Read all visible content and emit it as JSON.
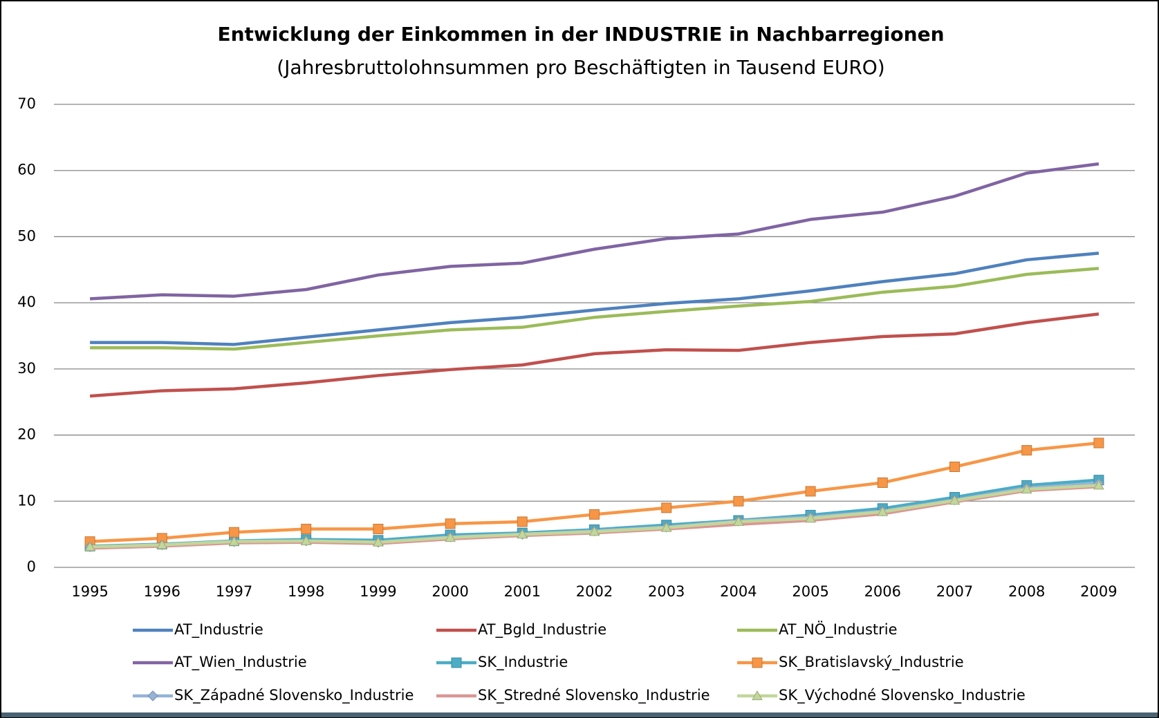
{
  "chart_data": {
    "type": "line",
    "title": "Entwicklung der Einkommen in der INDUSTRIE in Nachbarregionen",
    "subtitle": "(Jahresbruttolohnsummen pro Beschäftigten in Tausend EURO)",
    "categories": [
      "1995",
      "1996",
      "1997",
      "1998",
      "1999",
      "2000",
      "2001",
      "2002",
      "2003",
      "2004",
      "2005",
      "2006",
      "2007",
      "2008",
      "2009"
    ],
    "ylim": [
      0,
      70
    ],
    "yticks": [
      0,
      10,
      20,
      30,
      40,
      50,
      60,
      70
    ],
    "grid": true,
    "legend": "bottom",
    "series": [
      {
        "name": "AT_Industrie",
        "color": "#4f81bd",
        "marker": "none",
        "values": [
          34,
          34,
          33.7,
          34.8,
          35.9,
          37,
          37.8,
          38.9,
          39.9,
          40.6,
          41.8,
          43.2,
          44.4,
          46.5,
          47.5
        ]
      },
      {
        "name": "AT_Bgld_Industrie",
        "color": "#c0504d",
        "marker": "none",
        "values": [
          25.9,
          26.7,
          27,
          27.9,
          29,
          29.9,
          30.6,
          32.3,
          32.9,
          32.8,
          34,
          34.9,
          35.3,
          37,
          38.3
        ]
      },
      {
        "name": "AT_NÖ_Industrie",
        "color": "#9bbb59",
        "marker": "none",
        "values": [
          33.2,
          33.2,
          33,
          34,
          35,
          35.9,
          36.3,
          37.8,
          38.7,
          39.5,
          40.2,
          41.6,
          42.5,
          44.3,
          45.2
        ]
      },
      {
        "name": "AT_Wien_Industrie",
        "color": "#8064a2",
        "marker": "none",
        "values": [
          40.6,
          41.2,
          41,
          42,
          44.2,
          45.5,
          46,
          48.1,
          49.7,
          50.4,
          52.6,
          53.7,
          56.1,
          59.6,
          61
        ]
      },
      {
        "name": "SK_Industrie",
        "color": "#4bacc6",
        "marker": "square",
        "values": [
          3.2,
          3.5,
          4,
          4.2,
          4.1,
          4.9,
          5.2,
          5.7,
          6.4,
          7.1,
          7.9,
          8.9,
          10.6,
          12.4,
          13.2
        ]
      },
      {
        "name": "SK_Bratislavský_Industrie",
        "color": "#f79646",
        "marker": "square",
        "values": [
          3.9,
          4.4,
          5.3,
          5.8,
          5.8,
          6.6,
          6.9,
          8,
          9,
          10,
          11.5,
          12.8,
          15.2,
          17.7,
          18.8
        ]
      },
      {
        "name": "SK_Západné Slovensko_Industrie",
        "color": "#95b3d7",
        "marker": "diamond",
        "values": [
          3.1,
          3.4,
          3.9,
          4,
          3.8,
          4.6,
          5,
          5.5,
          6.1,
          7,
          7.6,
          8.5,
          10.2,
          12,
          12.7
        ]
      },
      {
        "name": "SK_Stredné Slovensko_Industrie",
        "color": "#d99694",
        "marker": "none",
        "values": [
          2.9,
          3.2,
          3.7,
          3.8,
          3.6,
          4.3,
          4.8,
          5.2,
          5.8,
          6.5,
          7.1,
          8.1,
          9.9,
          11.6,
          12.2
        ]
      },
      {
        "name": "SK_Východné Slovensko_Industrie",
        "color": "#c3d69b",
        "marker": "triangle",
        "values": [
          3.1,
          3.4,
          3.9,
          4,
          3.8,
          4.5,
          5,
          5.4,
          6,
          6.9,
          7.4,
          8.4,
          10.1,
          11.8,
          12.4
        ]
      }
    ]
  }
}
